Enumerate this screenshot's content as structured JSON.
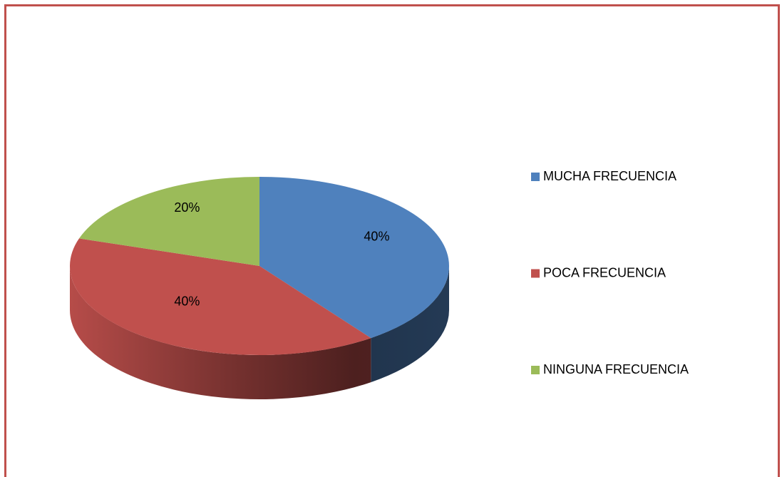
{
  "chart_data": {
    "type": "pie3d",
    "categories": [
      "MUCHA FRECUENCIA",
      "POCA FRECUENCIA",
      "NINGUNA FRECUENCIA"
    ],
    "values": [
      40,
      40,
      20
    ],
    "value_labels": [
      "40%",
      "40%",
      "20%"
    ],
    "colors": [
      "#4f81bd",
      "#c0504d",
      "#9bbb59"
    ],
    "legend": "right"
  }
}
